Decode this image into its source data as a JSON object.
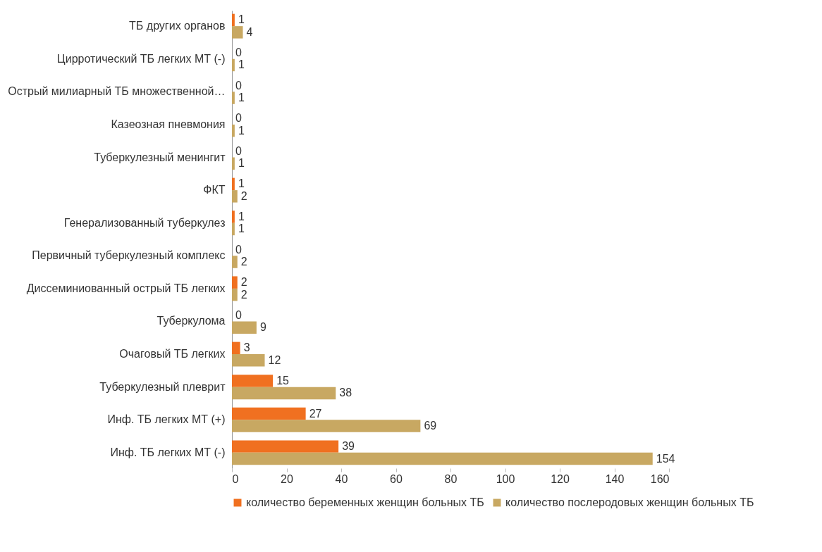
{
  "chart_data": {
    "type": "bar",
    "orientation": "horizontal",
    "categories": [
      "ТБ других органов",
      "Цирротический ТБ легких МТ (-)",
      "Острый милиарный ТБ множественной…",
      "Казеозная пневмония",
      "Туберкулезный менингит",
      "ФКТ",
      "Генерализованный туберкулез",
      "Первичный туберкулезный комплекс",
      "Диссеминиованный острый ТБ легких",
      "Туберкулома",
      "Очаговый ТБ легких",
      "Туберкулезный плеврит",
      "Инф. ТБ легких МТ (+)",
      "Инф. ТБ легких МТ (-)"
    ],
    "series": [
      {
        "name": "количество беременных женщин больных ТБ",
        "color": "#f07020",
        "values": [
          1,
          0,
          0,
          0,
          0,
          1,
          1,
          0,
          2,
          0,
          3,
          15,
          27,
          39
        ]
      },
      {
        "name": "количество послеродовых женщин больных ТБ",
        "color": "#c8a862",
        "values": [
          4,
          1,
          1,
          1,
          1,
          2,
          1,
          2,
          2,
          9,
          12,
          38,
          69,
          154
        ]
      }
    ],
    "xlim": [
      0,
      160
    ],
    "xticks": [
      0,
      20,
      40,
      60,
      80,
      100,
      120,
      140,
      160
    ],
    "grid": false,
    "legend": "bottom",
    "data_labels": true
  }
}
